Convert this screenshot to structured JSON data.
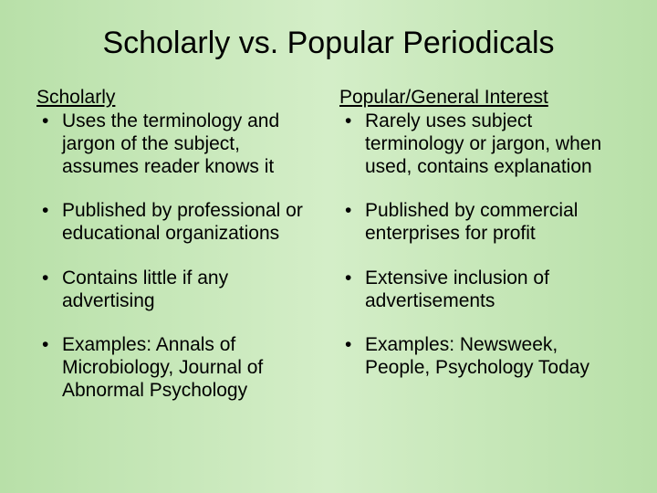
{
  "slide": {
    "title": "Scholarly vs. Popular Periodicals",
    "background_gradient": [
      "#b8e0a8",
      "#d4eec8",
      "#b8e0a8"
    ],
    "title_fontsize": 34,
    "body_fontsize": 21,
    "text_color": "#000000",
    "left": {
      "heading": "Scholarly",
      "bullets": [
        "Uses the terminology and jargon of the subject, assumes reader knows it",
        "Published by professional or educational organizations",
        "Contains little if any advertising",
        "Examples: Annals of Microbiology, Journal of Abnormal Psychology"
      ]
    },
    "right": {
      "heading": "Popular/General Interest",
      "bullets": [
        "Rarely uses subject terminology or jargon, when used, contains explanation",
        "Published by commercial enterprises for profit",
        "Extensive inclusion of advertisements",
        "Examples: Newsweek, People, Psychology Today"
      ]
    }
  }
}
